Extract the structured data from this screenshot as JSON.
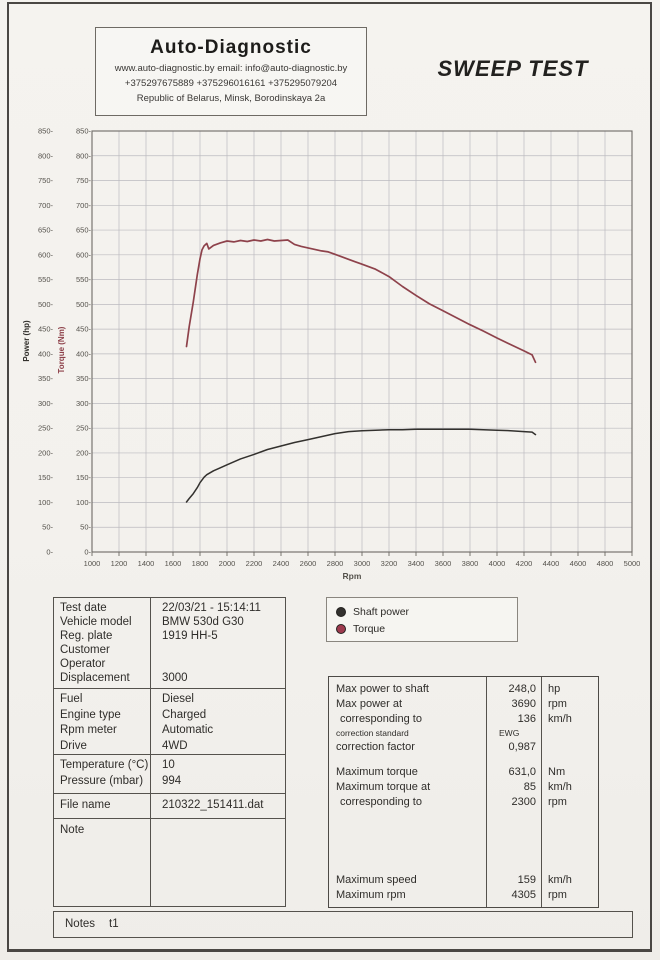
{
  "header": {
    "company": "Auto-Diagnostic",
    "web_email": "www.auto-diagnostic.by    email: info@auto-diagnostic.by",
    "phones": "+375297675889  +375296016161  +375295079204",
    "address": "Republic of Belarus, Minsk, Borodinskaya 2a"
  },
  "title": "SWEEP TEST",
  "chart_data": {
    "type": "line",
    "title": "",
    "xlabel": "Rpm",
    "x_axis": {
      "min": 1000,
      "max": 5000,
      "tick_step": 200,
      "tick_labels": [
        "1000",
        "1200",
        "1400",
        "1600",
        "1800",
        "2000",
        "2200",
        "2400",
        "2600",
        "2800",
        "3000",
        "3200",
        "3400",
        "3600",
        "3800",
        "4000",
        "4200",
        "4400",
        "4600",
        "4800",
        "5000"
      ]
    },
    "y_axis_left_power": {
      "label": "Power (hp)",
      "min": 0,
      "max": 850,
      "tick_step": 50,
      "tick_labels": [
        "0-",
        "50-",
        "100-",
        "150-",
        "200-",
        "250-",
        "300-",
        "350-",
        "400-",
        "450-",
        "500-",
        "550-",
        "600-",
        "650-",
        "700-",
        "750-",
        "800-",
        "850-"
      ]
    },
    "y_axis_left_torque": {
      "label": "Torque (Nm)",
      "min": 0,
      "max": 850,
      "tick_step": 50,
      "tick_labels": [
        "0-",
        "50-",
        "100-",
        "150-",
        "200-",
        "250-",
        "300-",
        "350-",
        "400-",
        "450-",
        "500-",
        "550-",
        "600-",
        "650-",
        "700-",
        "750-",
        "800-",
        "850-"
      ]
    },
    "grid": true,
    "legend_position": "below-chart-left",
    "series": [
      {
        "name": "Shaft power",
        "unit": "hp",
        "color": "#33312e",
        "width": 1.5,
        "rpm": [
          1700,
          1720,
          1750,
          1780,
          1800,
          1830,
          1850,
          1900,
          1950,
          2000,
          2100,
          2200,
          2300,
          2400,
          2500,
          2600,
          2700,
          2800,
          2900,
          3000,
          3100,
          3200,
          3300,
          3400,
          3500,
          3600,
          3690,
          3800,
          3900,
          4000,
          4100,
          4200,
          4260,
          4285
        ],
        "values": [
          101,
          108,
          118,
          130,
          140,
          151,
          156,
          164,
          170,
          176,
          188,
          197,
          207,
          214,
          221,
          227,
          233,
          239,
          243,
          245,
          246,
          247,
          247,
          248,
          248,
          248,
          248,
          248,
          247,
          246,
          245,
          243,
          242,
          237
        ]
      },
      {
        "name": "Torque",
        "unit": "Nm",
        "color": "#8e424b",
        "width": 1.7,
        "rpm": [
          1700,
          1720,
          1750,
          1780,
          1800,
          1815,
          1830,
          1850,
          1865,
          1880,
          1900,
          1950,
          2000,
          2050,
          2100,
          2150,
          2200,
          2250,
          2300,
          2350,
          2400,
          2450,
          2500,
          2550,
          2600,
          2650,
          2700,
          2750,
          2800,
          2850,
          2900,
          2950,
          3000,
          3100,
          3200,
          3300,
          3400,
          3500,
          3600,
          3700,
          3800,
          3900,
          4000,
          4100,
          4200,
          4260,
          4285
        ],
        "values": [
          415,
          455,
          505,
          560,
          592,
          610,
          618,
          623,
          612,
          615,
          619,
          624,
          628,
          626,
          629,
          627,
          630,
          628,
          631,
          628,
          629,
          630,
          621,
          617,
          614,
          611,
          608,
          606,
          601,
          596,
          591,
          586,
          581,
          571,
          556,
          536,
          518,
          501,
          487,
          473,
          459,
          446,
          432,
          419,
          406,
          398,
          383
        ]
      }
    ]
  },
  "legend": {
    "items": [
      {
        "label": "Shaft power",
        "color": "#33312e"
      },
      {
        "label": "Torque",
        "color": "#9e3a4e"
      }
    ]
  },
  "info_table": {
    "sections": [
      {
        "rows": [
          {
            "label": "Test date",
            "value": "22/03/21 - 15:14:11"
          },
          {
            "label": "Vehicle model",
            "value": "BMW 530d G30"
          },
          {
            "label": "Reg. plate",
            "value": "1919 HH-5"
          },
          {
            "label": "Customer",
            "value": ""
          },
          {
            "label": "Operator",
            "value": ""
          },
          {
            "label": "Displacement",
            "value": "3000"
          }
        ]
      },
      {
        "rows": [
          {
            "label": "Fuel",
            "value": "Diesel"
          },
          {
            "label": "Engine type",
            "value": "Charged"
          },
          {
            "label": "Rpm meter",
            "value": "Automatic"
          },
          {
            "label": "Drive",
            "value": "4WD"
          }
        ]
      },
      {
        "rows": [
          {
            "label": "Temperature (°C)",
            "value": "10"
          },
          {
            "label": "Pressure (mbar)",
            "value": "994"
          }
        ]
      },
      {
        "rows": [
          {
            "label": "File name",
            "value": "210322_151411.dat"
          }
        ]
      },
      {
        "rows": [
          {
            "label": "Note",
            "value": ""
          }
        ]
      }
    ]
  },
  "results_table": {
    "rows": [
      {
        "label": "Max power to shaft",
        "value": "248,0",
        "unit": "hp"
      },
      {
        "label": "Max power at",
        "value": "3690",
        "unit": "rpm"
      },
      {
        "label": "corresponding to",
        "value": "136",
        "unit": "km/h"
      },
      {
        "label": "correction standard",
        "value": "EWG",
        "unit": ""
      },
      {
        "label": "correction factor",
        "value": "0,987",
        "unit": ""
      },
      {
        "label": "Maximum torque",
        "value": "631,0",
        "unit": "Nm"
      },
      {
        "label": "Maximum torque at",
        "value": "85",
        "unit": "km/h"
      },
      {
        "label": "corresponding to",
        "value": "2300",
        "unit": "rpm"
      },
      {
        "label": "Maximum speed",
        "value": "159",
        "unit": "km/h"
      },
      {
        "label": "Maximum rpm",
        "value": "4305",
        "unit": "rpm"
      }
    ]
  },
  "notes": {
    "label": "Notes",
    "value": "t1"
  }
}
